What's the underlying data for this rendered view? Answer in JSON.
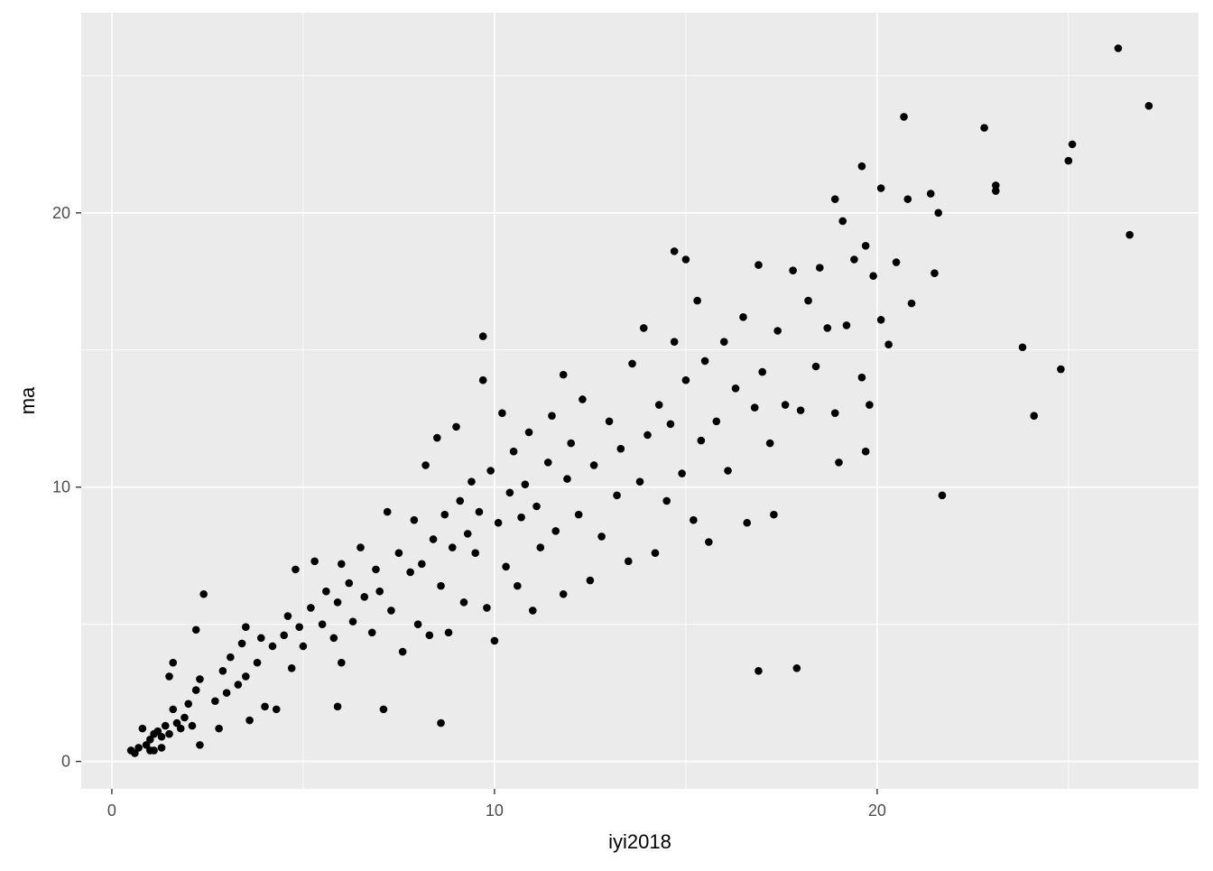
{
  "chart_data": {
    "type": "scatter",
    "xlabel": "iyi2018",
    "ylabel": "ma",
    "xlim": [
      -0.8,
      28.4
    ],
    "ylim": [
      -1.0,
      27.3
    ],
    "x_ticks": [
      0,
      10,
      20
    ],
    "y_ticks": [
      0,
      10,
      20
    ],
    "x_minor_grid": [
      5,
      15,
      25
    ],
    "y_minor_grid": [
      5,
      15,
      25
    ],
    "grid": true,
    "panel_background": "#EBEBEB",
    "point_color": "#000000",
    "points": [
      [
        0.5,
        0.4
      ],
      [
        0.6,
        0.3
      ],
      [
        0.7,
        0.5
      ],
      [
        0.8,
        1.2
      ],
      [
        0.9,
        0.6
      ],
      [
        1.0,
        0.8
      ],
      [
        1.0,
        0.4
      ],
      [
        1.1,
        0.4
      ],
      [
        1.1,
        1.0
      ],
      [
        1.2,
        1.1
      ],
      [
        1.3,
        0.9
      ],
      [
        1.3,
        0.5
      ],
      [
        1.4,
        1.3
      ],
      [
        1.5,
        1.0
      ],
      [
        1.5,
        3.1
      ],
      [
        1.6,
        1.9
      ],
      [
        1.6,
        3.6
      ],
      [
        1.7,
        1.4
      ],
      [
        1.8,
        1.2
      ],
      [
        1.9,
        1.6
      ],
      [
        2.0,
        2.1
      ],
      [
        2.1,
        1.3
      ],
      [
        2.2,
        2.6
      ],
      [
        2.2,
        4.8
      ],
      [
        2.3,
        0.6
      ],
      [
        2.3,
        3.0
      ],
      [
        2.4,
        6.1
      ],
      [
        2.7,
        2.2
      ],
      [
        2.8,
        1.2
      ],
      [
        2.9,
        3.3
      ],
      [
        3.0,
        2.5
      ],
      [
        3.1,
        3.8
      ],
      [
        3.3,
        2.8
      ],
      [
        3.4,
        4.3
      ],
      [
        3.5,
        3.1
      ],
      [
        3.5,
        4.9
      ],
      [
        3.6,
        1.5
      ],
      [
        3.8,
        3.6
      ],
      [
        3.9,
        4.5
      ],
      [
        4.0,
        2.0
      ],
      [
        4.2,
        4.2
      ],
      [
        4.3,
        1.9
      ],
      [
        4.5,
        4.6
      ],
      [
        4.6,
        5.3
      ],
      [
        4.7,
        3.4
      ],
      [
        4.8,
        7.0
      ],
      [
        4.9,
        4.9
      ],
      [
        5.0,
        4.2
      ],
      [
        5.2,
        5.6
      ],
      [
        5.3,
        7.3
      ],
      [
        5.5,
        5.0
      ],
      [
        5.6,
        6.2
      ],
      [
        5.8,
        4.5
      ],
      [
        5.9,
        5.8
      ],
      [
        5.9,
        2.0
      ],
      [
        6.0,
        7.2
      ],
      [
        6.0,
        3.6
      ],
      [
        6.2,
        6.5
      ],
      [
        6.3,
        5.1
      ],
      [
        6.5,
        7.8
      ],
      [
        6.6,
        6.0
      ],
      [
        6.8,
        4.7
      ],
      [
        6.9,
        7.0
      ],
      [
        7.0,
        6.2
      ],
      [
        7.1,
        1.9
      ],
      [
        7.2,
        9.1
      ],
      [
        7.3,
        5.5
      ],
      [
        7.5,
        7.6
      ],
      [
        7.6,
        4.0
      ],
      [
        7.8,
        6.9
      ],
      [
        7.9,
        8.8
      ],
      [
        8.0,
        5.0
      ],
      [
        8.1,
        7.2
      ],
      [
        8.2,
        10.8
      ],
      [
        8.3,
        4.6
      ],
      [
        8.4,
        8.1
      ],
      [
        8.5,
        11.8
      ],
      [
        8.6,
        6.4
      ],
      [
        8.6,
        1.4
      ],
      [
        8.7,
        9.0
      ],
      [
        8.8,
        4.7
      ],
      [
        8.9,
        7.8
      ],
      [
        9.0,
        12.2
      ],
      [
        9.1,
        9.5
      ],
      [
        9.2,
        5.8
      ],
      [
        9.3,
        8.3
      ],
      [
        9.4,
        10.2
      ],
      [
        9.5,
        7.6
      ],
      [
        9.6,
        9.1
      ],
      [
        9.7,
        13.9
      ],
      [
        9.7,
        15.5
      ],
      [
        9.8,
        5.6
      ],
      [
        9.9,
        10.6
      ],
      [
        10.0,
        4.4
      ],
      [
        10.1,
        8.7
      ],
      [
        10.2,
        12.7
      ],
      [
        10.3,
        7.1
      ],
      [
        10.4,
        9.8
      ],
      [
        10.5,
        11.3
      ],
      [
        10.6,
        6.4
      ],
      [
        10.7,
        8.9
      ],
      [
        10.8,
        10.1
      ],
      [
        10.9,
        12.0
      ],
      [
        11.0,
        5.5
      ],
      [
        11.1,
        9.3
      ],
      [
        11.2,
        7.8
      ],
      [
        11.4,
        10.9
      ],
      [
        11.5,
        12.6
      ],
      [
        11.6,
        8.4
      ],
      [
        11.8,
        6.1
      ],
      [
        11.8,
        14.1
      ],
      [
        11.9,
        10.3
      ],
      [
        12.0,
        11.6
      ],
      [
        12.2,
        9.0
      ],
      [
        12.3,
        13.2
      ],
      [
        12.5,
        6.6
      ],
      [
        12.6,
        10.8
      ],
      [
        12.8,
        8.2
      ],
      [
        13.0,
        12.4
      ],
      [
        13.2,
        9.7
      ],
      [
        13.3,
        11.4
      ],
      [
        13.5,
        7.3
      ],
      [
        13.6,
        14.5
      ],
      [
        13.8,
        10.2
      ],
      [
        13.9,
        15.8
      ],
      [
        14.0,
        11.9
      ],
      [
        14.2,
        7.6
      ],
      [
        14.3,
        13.0
      ],
      [
        14.5,
        9.5
      ],
      [
        14.6,
        12.3
      ],
      [
        14.7,
        15.3
      ],
      [
        14.7,
        18.6
      ],
      [
        14.9,
        10.5
      ],
      [
        15.0,
        13.9
      ],
      [
        15.0,
        18.3
      ],
      [
        15.2,
        8.8
      ],
      [
        15.3,
        16.8
      ],
      [
        15.4,
        11.7
      ],
      [
        15.5,
        14.6
      ],
      [
        15.6,
        8.0
      ],
      [
        15.8,
        12.4
      ],
      [
        16.0,
        15.3
      ],
      [
        16.1,
        10.6
      ],
      [
        16.3,
        13.6
      ],
      [
        16.5,
        16.2
      ],
      [
        16.6,
        8.7
      ],
      [
        16.8,
        12.9
      ],
      [
        16.9,
        18.1
      ],
      [
        16.9,
        3.3
      ],
      [
        17.0,
        14.2
      ],
      [
        17.2,
        11.6
      ],
      [
        17.3,
        9.0
      ],
      [
        17.4,
        15.7
      ],
      [
        17.6,
        13.0
      ],
      [
        17.8,
        17.9
      ],
      [
        17.9,
        3.4
      ],
      [
        18.0,
        12.8
      ],
      [
        18.2,
        16.8
      ],
      [
        18.4,
        14.4
      ],
      [
        18.5,
        18.0
      ],
      [
        18.7,
        15.8
      ],
      [
        18.9,
        12.7
      ],
      [
        18.9,
        20.5
      ],
      [
        19.0,
        10.9
      ],
      [
        19.1,
        19.7
      ],
      [
        19.2,
        15.9
      ],
      [
        19.4,
        18.3
      ],
      [
        19.6,
        14.0
      ],
      [
        19.6,
        21.7
      ],
      [
        19.7,
        11.3
      ],
      [
        19.7,
        18.8
      ],
      [
        19.8,
        13.0
      ],
      [
        19.9,
        17.7
      ],
      [
        20.1,
        16.1
      ],
      [
        20.1,
        20.9
      ],
      [
        20.3,
        15.2
      ],
      [
        20.5,
        18.2
      ],
      [
        20.7,
        23.5
      ],
      [
        20.8,
        20.5
      ],
      [
        20.9,
        16.7
      ],
      [
        21.4,
        20.7
      ],
      [
        21.5,
        17.8
      ],
      [
        21.6,
        20.0
      ],
      [
        21.7,
        9.7
      ],
      [
        22.8,
        23.1
      ],
      [
        23.1,
        21.0
      ],
      [
        23.1,
        20.8
      ],
      [
        23.8,
        15.1
      ],
      [
        24.1,
        12.6
      ],
      [
        24.8,
        14.3
      ],
      [
        25.0,
        21.9
      ],
      [
        25.1,
        22.5
      ],
      [
        26.3,
        26.0
      ],
      [
        26.6,
        19.2
      ],
      [
        27.1,
        23.9
      ]
    ]
  }
}
